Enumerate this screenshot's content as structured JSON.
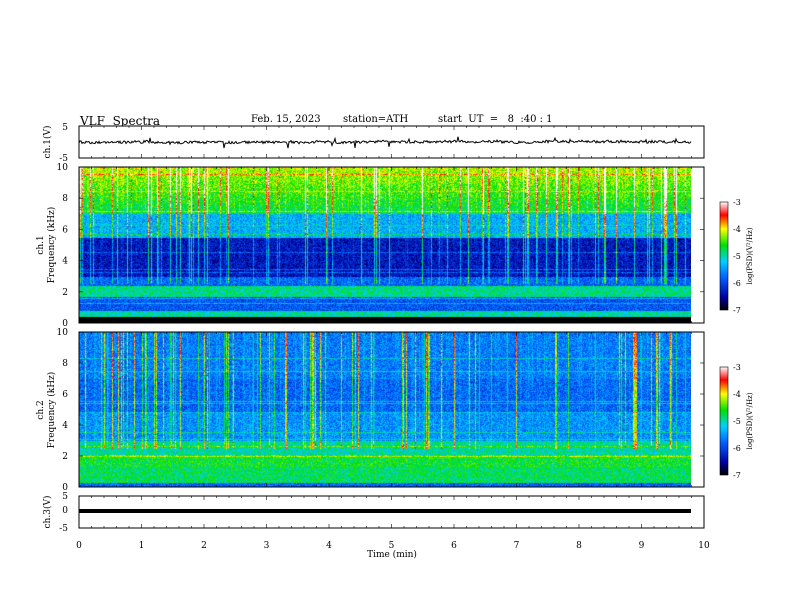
{
  "header": {
    "title": "VLF  Spectra",
    "date": "Feb. 15, 2023",
    "station": "station=ATH",
    "start": "start  UT  =   8  :40 : 1"
  },
  "chart_data": [
    {
      "type": "line",
      "name": "waveform-ch1",
      "ylabel": "ch.1(V)",
      "ylim": [
        -5,
        5
      ],
      "yticks": [
        "5",
        "-5"
      ],
      "xlim": [
        0,
        10
      ],
      "description_level_v": 0
    },
    {
      "type": "heatmap",
      "name": "spectrogram-ch1",
      "ylabel_line1": "ch.1",
      "ylabel_line2": "Frequency  (kHz)",
      "ylim": [
        0,
        10
      ],
      "yticks": [
        "0",
        "2",
        "4",
        "6",
        "8",
        "10"
      ],
      "xlim": [
        0,
        10
      ],
      "colorbar": {
        "label": "log(PSD)(V²/Hz)",
        "range": [
          -7,
          -3
        ],
        "ticks": [
          "-3",
          "-4",
          "-5",
          "-6",
          "-7"
        ]
      }
    },
    {
      "type": "heatmap",
      "name": "spectrogram-ch2",
      "ylabel_line1": "ch.2",
      "ylabel_line2": "Frequency  (kHz)",
      "ylim": [
        0,
        10
      ],
      "yticks": [
        "0",
        "2",
        "4",
        "6",
        "8",
        "10"
      ],
      "xlim": [
        0,
        10
      ],
      "colorbar": {
        "label": "log(PSD)(V²/Hz)",
        "range": [
          -7,
          -3
        ],
        "ticks": [
          "-3",
          "-4",
          "-5",
          "-6",
          "-7"
        ]
      }
    },
    {
      "type": "line",
      "name": "waveform-ch3",
      "ylabel": "ch.3(V)",
      "ylim": [
        -5,
        5
      ],
      "yticks": [
        "5",
        "0",
        "-5"
      ],
      "xlim": [
        0,
        10
      ],
      "level_v": -0.4
    }
  ],
  "xaxis": {
    "label": "Time  (min)",
    "ticks": [
      "0",
      "1",
      "2",
      "3",
      "4",
      "5",
      "6",
      "7",
      "8",
      "9",
      "10"
    ]
  },
  "colors": {
    "axis": "#000000",
    "background": "#ffffff"
  }
}
